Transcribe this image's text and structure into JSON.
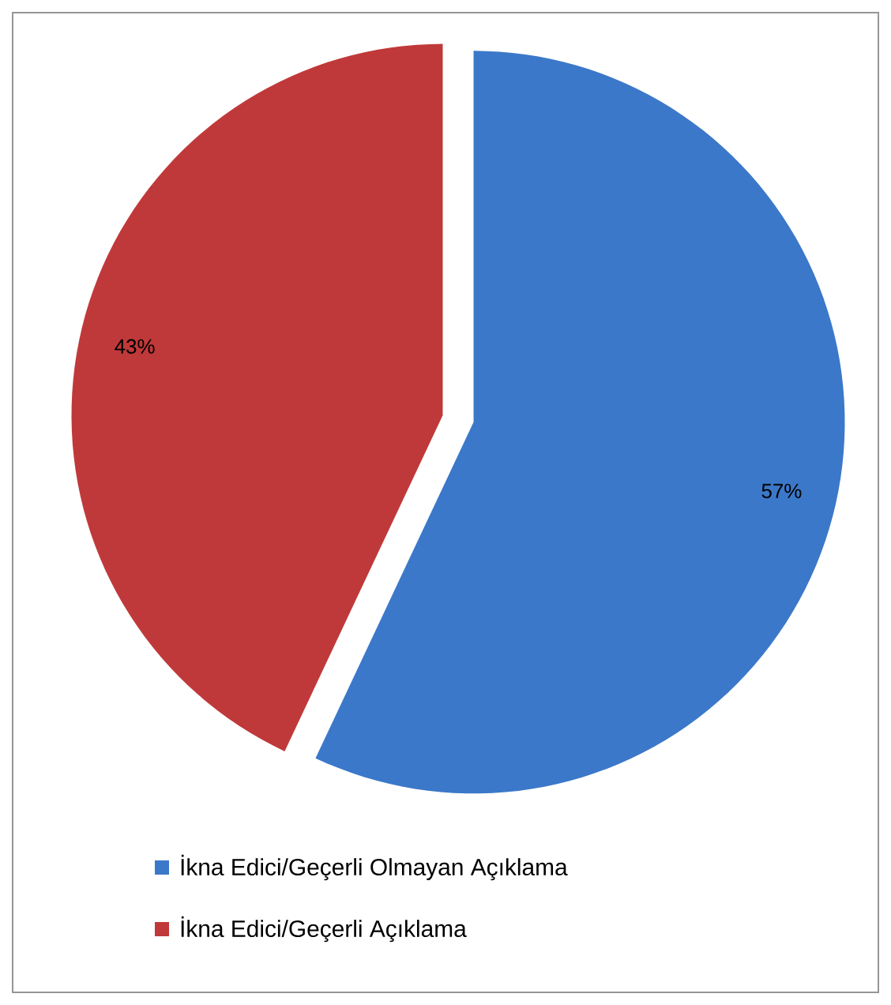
{
  "chart_data": {
    "type": "pie",
    "categories": [
      "İkna Edici/Geçerli Olmayan Açıklama",
      "İkna Edici/Geçerli Açıklama"
    ],
    "values": [
      57,
      43
    ],
    "value_labels": [
      "57%",
      "43%"
    ],
    "colors": [
      "#3b78c9",
      "#c0393a"
    ],
    "legend": "bottom"
  }
}
